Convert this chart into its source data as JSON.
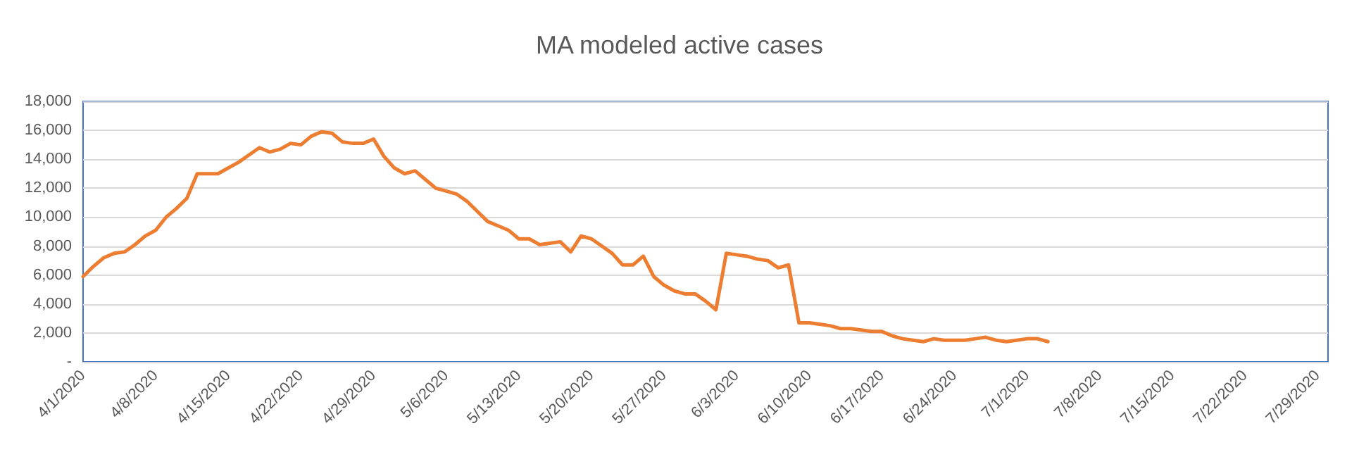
{
  "chart_data": {
    "type": "line",
    "title": "MA modeled active cases",
    "x": [
      "2020-04-01",
      "2020-04-02",
      "2020-04-03",
      "2020-04-04",
      "2020-04-05",
      "2020-04-06",
      "2020-04-07",
      "2020-04-08",
      "2020-04-09",
      "2020-04-10",
      "2020-04-11",
      "2020-04-12",
      "2020-04-13",
      "2020-04-14",
      "2020-04-15",
      "2020-04-16",
      "2020-04-17",
      "2020-04-18",
      "2020-04-19",
      "2020-04-20",
      "2020-04-21",
      "2020-04-22",
      "2020-04-23",
      "2020-04-24",
      "2020-04-25",
      "2020-04-26",
      "2020-04-27",
      "2020-04-28",
      "2020-04-29",
      "2020-04-30",
      "2020-05-01",
      "2020-05-02",
      "2020-05-03",
      "2020-05-04",
      "2020-05-05",
      "2020-05-06",
      "2020-05-07",
      "2020-05-08",
      "2020-05-09",
      "2020-05-10",
      "2020-05-11",
      "2020-05-12",
      "2020-05-13",
      "2020-05-14",
      "2020-05-15",
      "2020-05-16",
      "2020-05-17",
      "2020-05-18",
      "2020-05-19",
      "2020-05-20",
      "2020-05-21",
      "2020-05-22",
      "2020-05-23",
      "2020-05-24",
      "2020-05-25",
      "2020-05-26",
      "2020-05-27",
      "2020-05-28",
      "2020-05-29",
      "2020-05-30",
      "2020-05-31",
      "2020-06-01",
      "2020-06-02",
      "2020-06-03",
      "2020-06-04",
      "2020-06-05",
      "2020-06-06",
      "2020-06-07",
      "2020-06-08",
      "2020-06-09",
      "2020-06-10",
      "2020-06-11",
      "2020-06-12",
      "2020-06-13",
      "2020-06-14",
      "2020-06-15",
      "2020-06-16",
      "2020-06-17",
      "2020-06-18",
      "2020-06-19",
      "2020-06-20",
      "2020-06-21",
      "2020-06-22",
      "2020-06-23",
      "2020-06-24",
      "2020-06-25",
      "2020-06-26",
      "2020-06-27",
      "2020-06-28",
      "2020-06-29",
      "2020-06-30",
      "2020-07-01",
      "2020-07-02",
      "2020-07-03"
    ],
    "series": [
      {
        "color": "#ed7d31",
        "values": [
          5900,
          6600,
          7200,
          7500,
          7600,
          8100,
          8700,
          9100,
          10000,
          10600,
          11300,
          13000,
          13000,
          13000,
          13400,
          13800,
          14300,
          14800,
          14500,
          14700,
          15100,
          15000,
          15600,
          15900,
          15800,
          15200,
          15100,
          15100,
          15400,
          14200,
          13400,
          13000,
          13200,
          12600,
          12000,
          11800,
          11600,
          11100,
          10400,
          9700,
          9400,
          9100,
          8500,
          8500,
          8100,
          8200,
          8300,
          7600,
          8700,
          8500,
          8000,
          7500,
          6700,
          6700,
          7300,
          5900,
          5300,
          4900,
          4700,
          4700,
          4200,
          3600,
          7500,
          7400,
          7300,
          7100,
          7000,
          6500,
          6700,
          2700,
          2700,
          2600,
          2500,
          2300,
          2300,
          2200,
          2100,
          2100,
          1800,
          1600,
          1500,
          1400,
          1600,
          1500,
          1500,
          1500,
          1600,
          1700,
          1500,
          1400,
          1500,
          1600,
          1600,
          1400
        ]
      }
    ],
    "xlim": [
      "2020-04-01",
      "2020-07-30"
    ],
    "xticks": [
      {
        "value": "2020-04-01",
        "label": "4/1/2020"
      },
      {
        "value": "2020-04-08",
        "label": "4/8/2020"
      },
      {
        "value": "2020-04-15",
        "label": "4/15/2020"
      },
      {
        "value": "2020-04-22",
        "label": "4/22/2020"
      },
      {
        "value": "2020-04-29",
        "label": "4/29/2020"
      },
      {
        "value": "2020-05-06",
        "label": "5/6/2020"
      },
      {
        "value": "2020-05-13",
        "label": "5/13/2020"
      },
      {
        "value": "2020-05-20",
        "label": "5/20/2020"
      },
      {
        "value": "2020-05-27",
        "label": "5/27/2020"
      },
      {
        "value": "2020-06-03",
        "label": "6/3/2020"
      },
      {
        "value": "2020-06-10",
        "label": "6/10/2020"
      },
      {
        "value": "2020-06-17",
        "label": "6/17/2020"
      },
      {
        "value": "2020-06-24",
        "label": "6/24/2020"
      },
      {
        "value": "2020-07-01",
        "label": "7/1/2020"
      },
      {
        "value": "2020-07-08",
        "label": "7/8/2020"
      },
      {
        "value": "2020-07-15",
        "label": "7/15/2020"
      },
      {
        "value": "2020-07-22",
        "label": "7/22/2020"
      },
      {
        "value": "2020-07-29",
        "label": "7/29/2020"
      }
    ],
    "ylim": [
      0,
      18000
    ],
    "yticks": [
      {
        "value": 0,
        "label": "-"
      },
      {
        "value": 2000,
        "label": "2,000"
      },
      {
        "value": 4000,
        "label": "4,000"
      },
      {
        "value": 6000,
        "label": "6,000"
      },
      {
        "value": 8000,
        "label": "8,000"
      },
      {
        "value": 10000,
        "label": "10,000"
      },
      {
        "value": 12000,
        "label": "12,000"
      },
      {
        "value": 14000,
        "label": "14,000"
      },
      {
        "value": 16000,
        "label": "16,000"
      },
      {
        "value": 18000,
        "label": "18,000"
      }
    ],
    "grid": "y",
    "marker": "none",
    "line_style": "solid"
  }
}
